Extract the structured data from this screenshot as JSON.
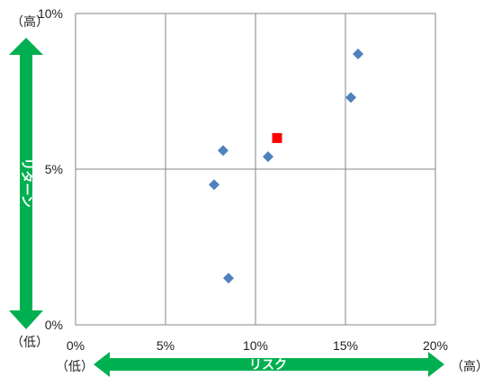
{
  "chart_data": {
    "type": "scatter",
    "title": "",
    "xlabel": "リスク",
    "ylabel": "リターン",
    "xlim": [
      0,
      20
    ],
    "ylim": [
      0,
      10
    ],
    "x_ticks": [
      "0%",
      "5%",
      "10%",
      "15%",
      "20%"
    ],
    "y_ticks": [
      "0%",
      "5%",
      "10%"
    ],
    "grid": true,
    "series": [
      {
        "marker": "diamond",
        "color": "#4F81BD",
        "points": [
          {
            "x": 8.2,
            "y": 5.6
          },
          {
            "x": 7.7,
            "y": 4.5
          },
          {
            "x": 8.5,
            "y": 1.5
          },
          {
            "x": 10.7,
            "y": 5.4
          },
          {
            "x": 15.3,
            "y": 7.3
          },
          {
            "x": 15.7,
            "y": 8.7
          }
        ]
      },
      {
        "marker": "square",
        "color": "#FF0000",
        "points": [
          {
            "x": 11.2,
            "y": 6.0
          }
        ]
      }
    ]
  },
  "axis_labels": {
    "x_low": "（低）",
    "x_high": "（高）",
    "y_low": "（低）",
    "y_high": "（高）"
  },
  "arrow_color": "#00B050"
}
